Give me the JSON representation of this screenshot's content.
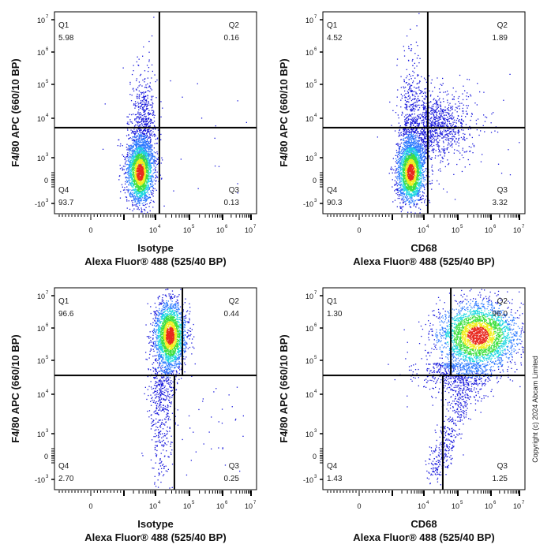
{
  "copyright": "Copyright (c) 2024 Abcam Limited",
  "chart_data": [
    {
      "type": "scatter",
      "subtype": "flow-cytometry-density-plot",
      "xlabel": [
        "Isotype",
        "Alexa Fluor® 488  (525/40 BP)"
      ],
      "ylabel": "F4/80 APC (660/10 BP)",
      "x_scale": "logicle",
      "y_scale": "logicle",
      "xlim": [
        -1000,
        10000000
      ],
      "ylim": [
        -1500,
        10000000
      ],
      "gate": {
        "x_upper": 13000,
        "x_lower": 13000,
        "y": 5800
      },
      "quadrants": [
        {
          "name": "Q1",
          "value": "5.98"
        },
        {
          "name": "Q2",
          "value": "0.16"
        },
        {
          "name": "Q3",
          "value": "0.13"
        },
        {
          "name": "Q4",
          "value": "93.7"
        }
      ]
    },
    {
      "type": "scatter",
      "subtype": "flow-cytometry-density-plot",
      "xlabel": [
        "CD68",
        "Alexa Fluor® 488  (525/40 BP)"
      ],
      "ylabel": "F4/80 APC (660/10 BP)",
      "x_scale": "logicle",
      "y_scale": "logicle",
      "xlim": [
        -1000,
        10000000
      ],
      "ylim": [
        -1500,
        10000000
      ],
      "gate": {
        "x_upper": 13000,
        "x_lower": 13000,
        "y": 5800
      },
      "quadrants": [
        {
          "name": "Q1",
          "value": "4.52"
        },
        {
          "name": "Q2",
          "value": "1.89"
        },
        {
          "name": "Q3",
          "value": "3.32"
        },
        {
          "name": "Q4",
          "value": "90.3"
        }
      ]
    },
    {
      "type": "scatter",
      "subtype": "flow-cytometry-density-plot",
      "xlabel": [
        "Isotype",
        "Alexa Fluor® 488  (525/40 BP)"
      ],
      "ylabel": "F4/80 APC (660/10 BP)",
      "x_scale": "logicle",
      "y_scale": "logicle",
      "xlim": [
        -1000,
        10000000
      ],
      "ylim": [
        -1500,
        10000000
      ],
      "gate": {
        "x_upper": 62000,
        "x_lower": 36000,
        "y": 36000
      },
      "quadrants": [
        {
          "name": "Q1",
          "value": "96.6"
        },
        {
          "name": "Q2",
          "value": "0.44"
        },
        {
          "name": "Q3",
          "value": "0.25"
        },
        {
          "name": "Q4",
          "value": "2.70"
        }
      ]
    },
    {
      "type": "scatter",
      "subtype": "flow-cytometry-density-plot",
      "xlabel": [
        "CD68",
        "Alexa Fluor® 488  (525/40 BP)"
      ],
      "ylabel": "F4/80 APC (660/10 BP)",
      "x_scale": "logicle",
      "y_scale": "logicle",
      "xlim": [
        -1000,
        10000000
      ],
      "ylim": [
        -1500,
        10000000
      ],
      "gate": {
        "x_upper": 62000,
        "x_lower": 36000,
        "y": 36000
      },
      "quadrants": [
        {
          "name": "Q1",
          "value": "1.30"
        },
        {
          "name": "Q2",
          "value": "96.0"
        },
        {
          "name": "Q3",
          "value": "1.25"
        },
        {
          "name": "Q4",
          "value": "1.43"
        }
      ]
    }
  ],
  "y_ticks": [
    {
      "base": "10",
      "exp": "7"
    },
    {
      "base": "10",
      "exp": "6"
    },
    {
      "base": "10",
      "exp": "5"
    },
    {
      "base": "10",
      "exp": "4"
    },
    {
      "base": "10",
      "exp": "3"
    },
    {
      "base": "0",
      "exp": ""
    },
    {
      "base": "-10",
      "exp": "3"
    }
  ],
  "x_ticks": [
    {
      "base": "0",
      "exp": ""
    },
    {
      "base": "10",
      "exp": "4"
    },
    {
      "base": "10",
      "exp": "5"
    },
    {
      "base": "10",
      "exp": "6"
    },
    {
      "base": "10",
      "exp": "7"
    }
  ],
  "colors": {
    "low": "#1a1adc",
    "mid_low": "#2f7bff",
    "mid": "#20d8e0",
    "mid_high": "#3ee03e",
    "high": "#f2ee20",
    "peak": "#e8281e",
    "gate": "#000000"
  }
}
